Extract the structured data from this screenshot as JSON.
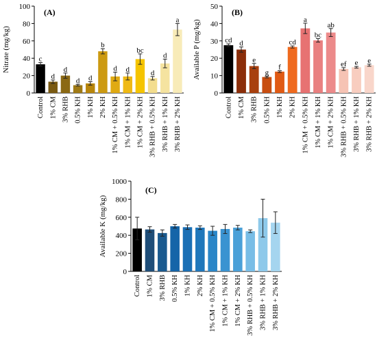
{
  "chart_data": [
    {
      "type": "bar",
      "panel_label": "(A)",
      "ylabel": "Nitrate (mg/kg)",
      "ylim": [
        0,
        100
      ],
      "yticks": [
        0,
        20,
        40,
        60,
        80,
        100
      ],
      "categories": [
        "Control",
        "1% CM",
        "3% RHB",
        "0.5% KH",
        "1% KH",
        "2% KH",
        "1% CM + 0.5% KH",
        "1% CM + 1% KH",
        "1% CM + 2% KH",
        "3% RHB + 0.5% KH",
        "3% RHB + 1% KH",
        "3% RHB + 2% KH"
      ],
      "values": [
        33,
        13,
        20,
        9,
        11,
        48,
        19,
        19,
        39,
        17,
        34,
        73
      ],
      "errors": [
        2,
        2,
        3,
        1,
        2,
        3,
        5,
        4,
        6,
        2,
        5,
        7
      ],
      "letters": [
        "c",
        "d",
        "d",
        "d",
        "d",
        "b",
        "d",
        "d",
        "bc",
        "d",
        "d",
        "a"
      ],
      "colors": [
        "#000000",
        "#7a5a12",
        "#8b6914",
        "#a07a15",
        "#b8860b",
        "#cc9a12",
        "#e0aa12",
        "#efb914",
        "#f5c400",
        "#f3dd8e",
        "#f5e3a0",
        "#f8ebb8"
      ]
    },
    {
      "type": "bar",
      "panel_label": "(B)",
      "ylabel": "Available P (mg/kg)",
      "ylim": [
        0,
        50
      ],
      "yticks": [
        0,
        10,
        20,
        30,
        40,
        50
      ],
      "categories": [
        "Control",
        "1% CM",
        "3% RHB",
        "0.5% KH",
        "1% KH",
        "2% KH",
        "1% CM + 0.5% KH",
        "1% CM + 1% KH",
        "1% CM + 2% KH",
        "3% RHB + 0.5% KH",
        "3% RHB + 1% KH",
        "3% RHB + 2% KH"
      ],
      "values": [
        27.5,
        25,
        15.5,
        9.2,
        12.3,
        26.5,
        37.2,
        30.3,
        34.8,
        13.8,
        14.8,
        16
      ],
      "errors": [
        0.8,
        1.5,
        1.5,
        0.5,
        0.5,
        0.6,
        3,
        1,
        2.3,
        0.8,
        0.5,
        0.6
      ],
      "letters": [
        "cd",
        "d",
        "e",
        "g",
        "f",
        "cd",
        "a",
        "bc",
        "ab",
        "ef",
        "e",
        "e"
      ],
      "colors": [
        "#000000",
        "#8b2e0a",
        "#a8400e",
        "#c84e10",
        "#e05a14",
        "#ef6a1e",
        "#e77272",
        "#e98080",
        "#ec8a8a",
        "#f6c3b4",
        "#f8cdbf",
        "#f9d6ca"
      ]
    },
    {
      "type": "bar",
      "panel_label": "(C)",
      "ylabel": "Available K (mg/kg)",
      "ylim": [
        0,
        1000
      ],
      "yticks": [
        0,
        200,
        400,
        600,
        800,
        1000
      ],
      "categories": [
        "Control",
        "1% CM",
        "3% RHB",
        "0.5% KH",
        "1% KH",
        "2% KH",
        "1% CM + 0.5% KH",
        "1% CM + 1% KH",
        "1% CM + 2% KH",
        "3% RHB + 0.5% KH",
        "3% RHB + 1% KH",
        "3% RHB + 2% KH"
      ],
      "values": [
        475,
        465,
        425,
        500,
        490,
        485,
        450,
        470,
        485,
        445,
        590,
        540
      ],
      "errors": [
        125,
        30,
        35,
        20,
        25,
        20,
        50,
        50,
        25,
        15,
        210,
        120
      ],
      "letters": [],
      "colors": [
        "#000000",
        "#1f4e79",
        "#1a5a8f",
        "#1565a8",
        "#1a6fb5",
        "#1f77bb",
        "#2a86c8",
        "#3a93d1",
        "#4aa0d8",
        "#78bde6",
        "#8ec9ea",
        "#a5d5ef"
      ]
    }
  ]
}
